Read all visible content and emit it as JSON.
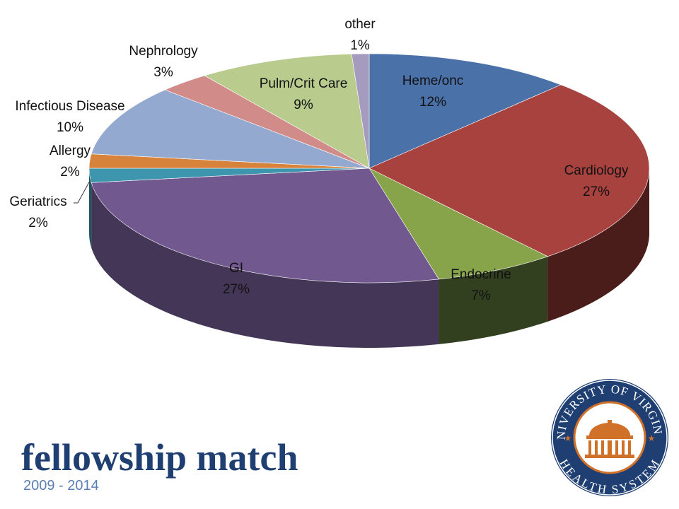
{
  "chart_data": {
    "type": "pie",
    "title": "",
    "categories": [
      "Heme/onc",
      "Cardiology",
      "Endocrine",
      "GI",
      "Geriatrics",
      "Allergy",
      "Infectious Disease",
      "Nephrology",
      "Pulm/Crit Care",
      "other"
    ],
    "values": [
      12,
      27,
      7,
      27,
      2,
      2,
      10,
      3,
      9,
      1
    ],
    "value_labels": [
      "12%",
      "27%",
      "7%",
      "27%",
      "2%",
      "2%",
      "10%",
      "3%",
      "9%",
      "1%"
    ],
    "colors": [
      "#4a71a8",
      "#a8423f",
      "#87a44a",
      "#71588f",
      "#3d96ae",
      "#d8833b",
      "#93a9d0",
      "#d18c8a",
      "#b9cc8e",
      "#a49bbf"
    ],
    "side_colors": [
      "#2d4466",
      "#4a1d1b",
      "#334020",
      "#433656",
      "#1f5563",
      "#7a4a20",
      "#56657d",
      "#7a5150",
      "#6c7a50",
      "#625c74"
    ]
  },
  "footer": {
    "title": "fellowship match",
    "subtitle": "2009 - 2014"
  },
  "logo": {
    "text_top": "UNIVERSITY OF VIRGINIA",
    "text_bottom": "HEALTH SYSTEM",
    "colors": {
      "ring": "#1f3f72",
      "accent": "#d0712a"
    }
  }
}
